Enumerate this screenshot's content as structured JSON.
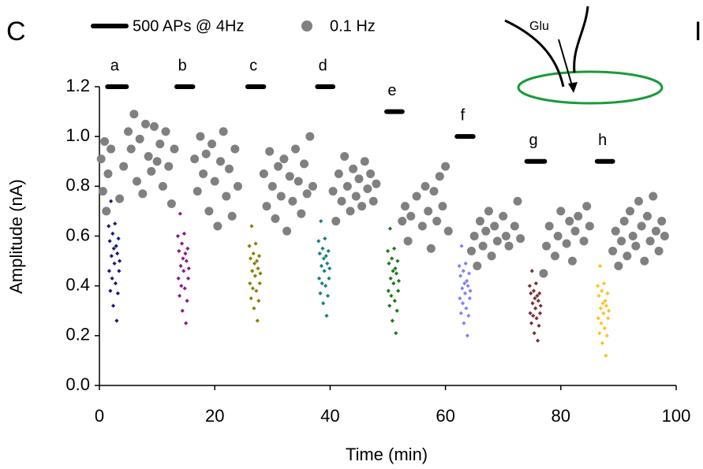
{
  "chart_data": {
    "type": "scatter",
    "panel_label": "C",
    "next_panel_label": "I",
    "xlabel": "Time (min)",
    "ylabel": "Amplitude (nA)",
    "xlim": [
      0,
      100
    ],
    "xticks": [
      0,
      20,
      40,
      60,
      80,
      100
    ],
    "ylim": [
      0,
      1.2
    ],
    "yticks": [
      {
        "value": 0,
        "label": "0.0"
      },
      0.2,
      0.4,
      0.6,
      0.8,
      {
        "value": 1,
        "label": "1.0"
      },
      1.2
    ],
    "grid": false,
    "legend_bar_label": "500 APs @ 4Hz",
    "inset_label": "Glu",
    "background_series": {
      "name": "0.1 Hz",
      "color": "#808080",
      "x": [
        0.3,
        0.6,
        0.9,
        1.2,
        1.5,
        2.0,
        3.5,
        4.2,
        5.0,
        5.5,
        6.0,
        6.5,
        7.0,
        7.5,
        8.0,
        8.5,
        9.0,
        9.5,
        10.0,
        10.5,
        11.0,
        11.5,
        12.0,
        12.5,
        13.0,
        16.5,
        17.0,
        17.5,
        18.0,
        18.5,
        19.0,
        19.5,
        20.0,
        20.5,
        21.0,
        21.5,
        22.0,
        22.5,
        23.0,
        23.5,
        24.0,
        28.5,
        29.0,
        29.5,
        30.0,
        30.5,
        31.0,
        31.5,
        32.0,
        32.5,
        33.0,
        33.5,
        34.0,
        34.5,
        35.0,
        35.5,
        36.0,
        36.5,
        37.0,
        40.5,
        41.0,
        41.5,
        42.0,
        42.5,
        43.0,
        43.5,
        44.0,
        44.5,
        45.0,
        45.5,
        46.0,
        46.5,
        47.0,
        47.5,
        48.0,
        52.5,
        53.0,
        53.5,
        54.0,
        55.0,
        56.0,
        56.5,
        57.0,
        57.5,
        58.0,
        58.5,
        59.0,
        59.5,
        60.0,
        60.5,
        64.5,
        65.0,
        65.5,
        66.0,
        66.5,
        67.0,
        67.5,
        68.0,
        68.5,
        69.0,
        70.0,
        70.5,
        71.0,
        72.0,
        72.5,
        73.0,
        77.0,
        77.5,
        78.0,
        79.0,
        79.5,
        80.0,
        81.0,
        81.5,
        82.0,
        82.5,
        83.0,
        84.0,
        84.5,
        85.0,
        89.0,
        89.5,
        90.0,
        90.5,
        91.0,
        91.5,
        92.0,
        92.5,
        93.0,
        93.5,
        94.0,
        94.5,
        95.0,
        95.5,
        96.0,
        96.5,
        97.0,
        97.5,
        98.0
      ],
      "values": [
        0.91,
        0.78,
        0.98,
        0.7,
        0.85,
        0.95,
        0.75,
        0.88,
        1.02,
        0.95,
        1.09,
        0.82,
        0.99,
        0.77,
        1.05,
        0.92,
        0.86,
        1.04,
        0.9,
        0.97,
        0.8,
        1.02,
        0.88,
        0.73,
        0.95,
        0.91,
        0.78,
        1.0,
        0.85,
        0.93,
        0.7,
        0.97,
        0.82,
        0.64,
        0.9,
        1.02,
        0.76,
        0.87,
        0.68,
        0.95,
        0.8,
        0.85,
        0.72,
        0.94,
        0.8,
        0.67,
        0.88,
        0.76,
        0.91,
        0.62,
        0.84,
        0.74,
        0.95,
        0.82,
        0.69,
        0.89,
        0.77,
        1.0,
        0.8,
        0.78,
        0.66,
        0.85,
        0.74,
        0.92,
        0.8,
        0.7,
        0.87,
        0.76,
        0.83,
        0.72,
        0.9,
        0.79,
        0.85,
        0.74,
        0.81,
        0.66,
        0.72,
        0.58,
        0.68,
        0.76,
        0.64,
        0.8,
        0.7,
        0.55,
        0.78,
        0.66,
        0.84,
        0.72,
        0.88,
        0.62,
        0.54,
        0.6,
        0.48,
        0.66,
        0.56,
        0.62,
        0.7,
        0.52,
        0.64,
        0.58,
        0.68,
        0.6,
        0.56,
        0.64,
        0.74,
        0.59,
        0.45,
        0.56,
        0.64,
        0.52,
        0.6,
        0.7,
        0.57,
        0.66,
        0.5,
        0.62,
        0.68,
        0.58,
        0.72,
        0.64,
        0.54,
        0.62,
        0.48,
        0.58,
        0.66,
        0.52,
        0.7,
        0.6,
        0.56,
        0.74,
        0.64,
        0.5,
        0.68,
        0.58,
        0.76,
        0.62,
        0.54,
        0.66,
        0.6
      ]
    },
    "series": [
      {
        "name": "a",
        "color": "#1a1a80",
        "bar_x": [
          1.4,
          4.7
        ],
        "bar_y": 1.2,
        "x": [
          1.6,
          1.7,
          1.8,
          1.9,
          2.0,
          2.1,
          2.2,
          2.3,
          2.4,
          2.5,
          2.6,
          2.7,
          2.8,
          2.9,
          3.0,
          3.1,
          3.2,
          3.3,
          3.4,
          3.5
        ],
        "values": [
          0.64,
          0.46,
          0.58,
          0.38,
          0.74,
          0.52,
          0.43,
          0.61,
          0.32,
          0.55,
          0.49,
          0.65,
          0.41,
          0.56,
          0.26,
          0.53,
          0.37,
          0.59,
          0.46,
          0.5
        ]
      },
      {
        "name": "b",
        "color": "#8b1a8b",
        "bar_x": [
          13.4,
          16.2
        ],
        "bar_y": 1.2,
        "x": [
          13.6,
          13.7,
          13.8,
          13.9,
          14.0,
          14.1,
          14.2,
          14.3,
          14.4,
          14.5,
          14.6,
          14.7,
          14.8,
          14.9,
          15.0,
          15.1,
          15.2,
          15.3,
          15.4,
          15.5
        ],
        "values": [
          0.6,
          0.43,
          0.54,
          0.36,
          0.69,
          0.48,
          0.4,
          0.57,
          0.3,
          0.51,
          0.46,
          0.61,
          0.39,
          0.53,
          0.25,
          0.5,
          0.34,
          0.55,
          0.43,
          0.47
        ]
      },
      {
        "name": "c",
        "color": "#8b8000",
        "bar_x": [
          25.7,
          28.5
        ],
        "bar_y": 1.2,
        "x": [
          26.0,
          26.1,
          26.2,
          26.3,
          26.4,
          26.5,
          26.6,
          26.7,
          26.8,
          26.9,
          27.0,
          27.1,
          27.2,
          27.3,
          27.4,
          27.5,
          27.6,
          27.7,
          27.8,
          27.9
        ],
        "values": [
          0.56,
          0.41,
          0.51,
          0.35,
          0.64,
          0.46,
          0.39,
          0.53,
          0.31,
          0.49,
          0.44,
          0.57,
          0.38,
          0.5,
          0.26,
          0.47,
          0.34,
          0.52,
          0.41,
          0.45
        ]
      },
      {
        "name": "d",
        "color": "#168080",
        "bar_x": [
          37.8,
          40.5
        ],
        "bar_y": 1.2,
        "x": [
          38.0,
          38.1,
          38.2,
          38.3,
          38.4,
          38.5,
          38.6,
          38.7,
          38.8,
          38.9,
          39.0,
          39.1,
          39.2,
          39.3,
          39.4,
          39.5,
          39.6,
          39.7,
          39.8,
          39.9
        ],
        "values": [
          0.58,
          0.43,
          0.53,
          0.37,
          0.66,
          0.48,
          0.41,
          0.55,
          0.33,
          0.51,
          0.46,
          0.59,
          0.4,
          0.52,
          0.28,
          0.49,
          0.36,
          0.54,
          0.43,
          0.47
        ]
      },
      {
        "name": "e",
        "color": "#1a7a1a",
        "bar_x": [
          49.8,
          52.5
        ],
        "bar_y": 1.1,
        "x": [
          50.0,
          50.1,
          50.2,
          50.3,
          50.4,
          50.5,
          50.6,
          50.7,
          50.8,
          50.9,
          51.0,
          51.1,
          51.2,
          51.3,
          51.4,
          51.5,
          51.6,
          51.7,
          51.8,
          51.9
        ],
        "values": [
          0.54,
          0.38,
          0.49,
          0.32,
          0.63,
          0.43,
          0.36,
          0.51,
          0.26,
          0.46,
          0.41,
          0.55,
          0.34,
          0.47,
          0.21,
          0.45,
          0.3,
          0.5,
          0.38,
          0.42
        ]
      },
      {
        "name": "f",
        "color": "#8080ff",
        "bar_x": [
          62.0,
          64.8
        ],
        "bar_y": 1.0,
        "x": [
          62.4,
          62.5,
          62.6,
          62.7,
          62.8,
          62.9,
          63.0,
          63.1,
          63.2,
          63.3,
          63.4,
          63.5,
          63.6,
          63.7,
          63.8,
          63.9,
          64.0,
          64.1,
          64.2,
          64.3
        ],
        "values": [
          0.48,
          0.35,
          0.44,
          0.29,
          0.56,
          0.39,
          0.33,
          0.46,
          0.25,
          0.41,
          0.37,
          0.49,
          0.31,
          0.42,
          0.2,
          0.4,
          0.28,
          0.45,
          0.35,
          0.38
        ]
      },
      {
        "name": "g",
        "color": "#7a3030",
        "bar_x": [
          74.1,
          77.2
        ],
        "bar_y": 0.9,
        "x": [
          74.6,
          74.7,
          74.8,
          74.9,
          75.0,
          75.1,
          75.2,
          75.3,
          75.4,
          75.5,
          75.6,
          75.7,
          75.8,
          75.9,
          76.0,
          76.1,
          76.2,
          76.3,
          76.4,
          76.5
        ],
        "values": [
          0.4,
          0.29,
          0.37,
          0.25,
          0.46,
          0.33,
          0.28,
          0.38,
          0.21,
          0.35,
          0.31,
          0.41,
          0.27,
          0.36,
          0.18,
          0.34,
          0.24,
          0.37,
          0.29,
          0.32
        ]
      },
      {
        "name": "h",
        "color": "#ffc020",
        "bar_x": [
          86.3,
          89.0
        ],
        "bar_y": 0.9,
        "x": [
          86.4,
          86.5,
          86.6,
          86.7,
          86.8,
          86.9,
          87.0,
          87.1,
          87.2,
          87.3,
          87.4,
          87.5,
          87.6,
          87.7,
          87.8,
          87.9,
          88.0,
          88.1,
          88.2,
          88.3
        ],
        "values": [
          0.4,
          0.27,
          0.36,
          0.21,
          0.48,
          0.31,
          0.25,
          0.38,
          0.17,
          0.33,
          0.29,
          0.41,
          0.23,
          0.34,
          0.12,
          0.32,
          0.2,
          0.37,
          0.27,
          0.3
        ]
      }
    ]
  }
}
